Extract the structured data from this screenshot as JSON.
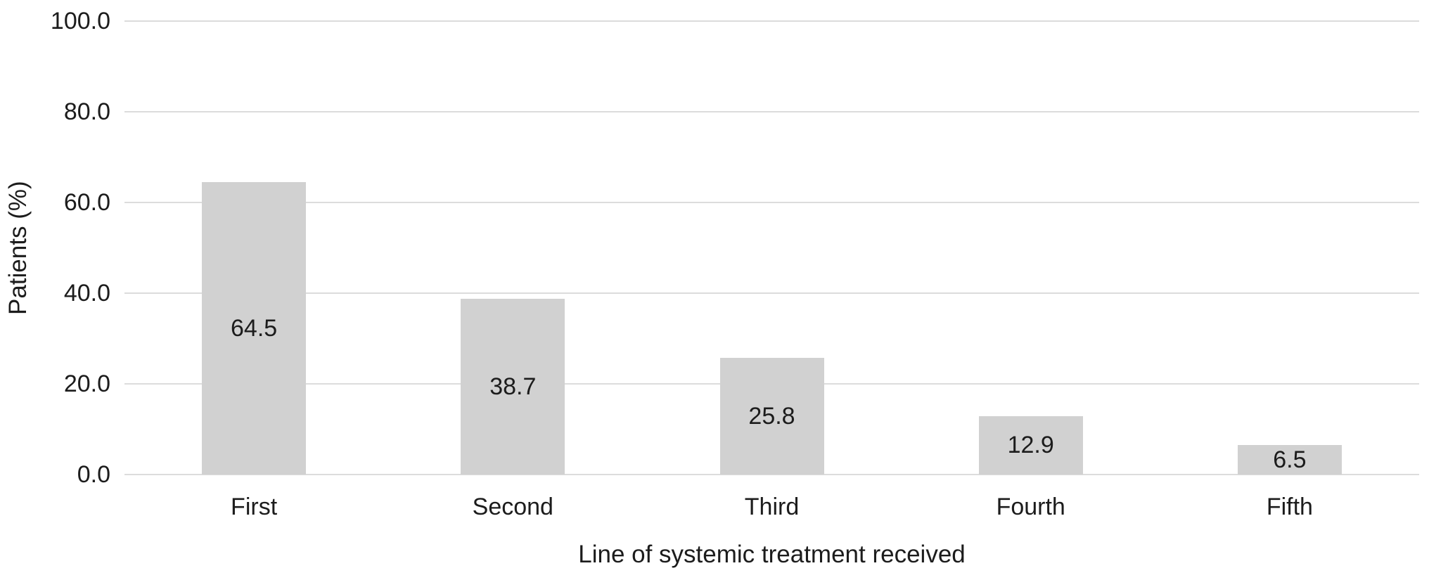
{
  "chart_data": {
    "type": "bar",
    "categories": [
      "First",
      "Second",
      "Third",
      "Fourth",
      "Fifth"
    ],
    "values": [
      64.5,
      38.7,
      25.8,
      12.9,
      6.5
    ],
    "title": "",
    "xlabel": "Line of systemic treatment received",
    "ylabel": "Patients (%)",
    "ylim": [
      0,
      100
    ],
    "ytick_step": 20,
    "yticks": [
      "100.0",
      "80.0",
      "60.0",
      "40.0",
      "20.0",
      "0.0"
    ],
    "grid": true,
    "legend_position": "none",
    "data_label_position": "center-inside",
    "colors": {
      "bar_fill": "#d1d1d1",
      "gridline": "#dcdcdc",
      "text": "#1c1c1c",
      "background": "#ffffff"
    }
  }
}
